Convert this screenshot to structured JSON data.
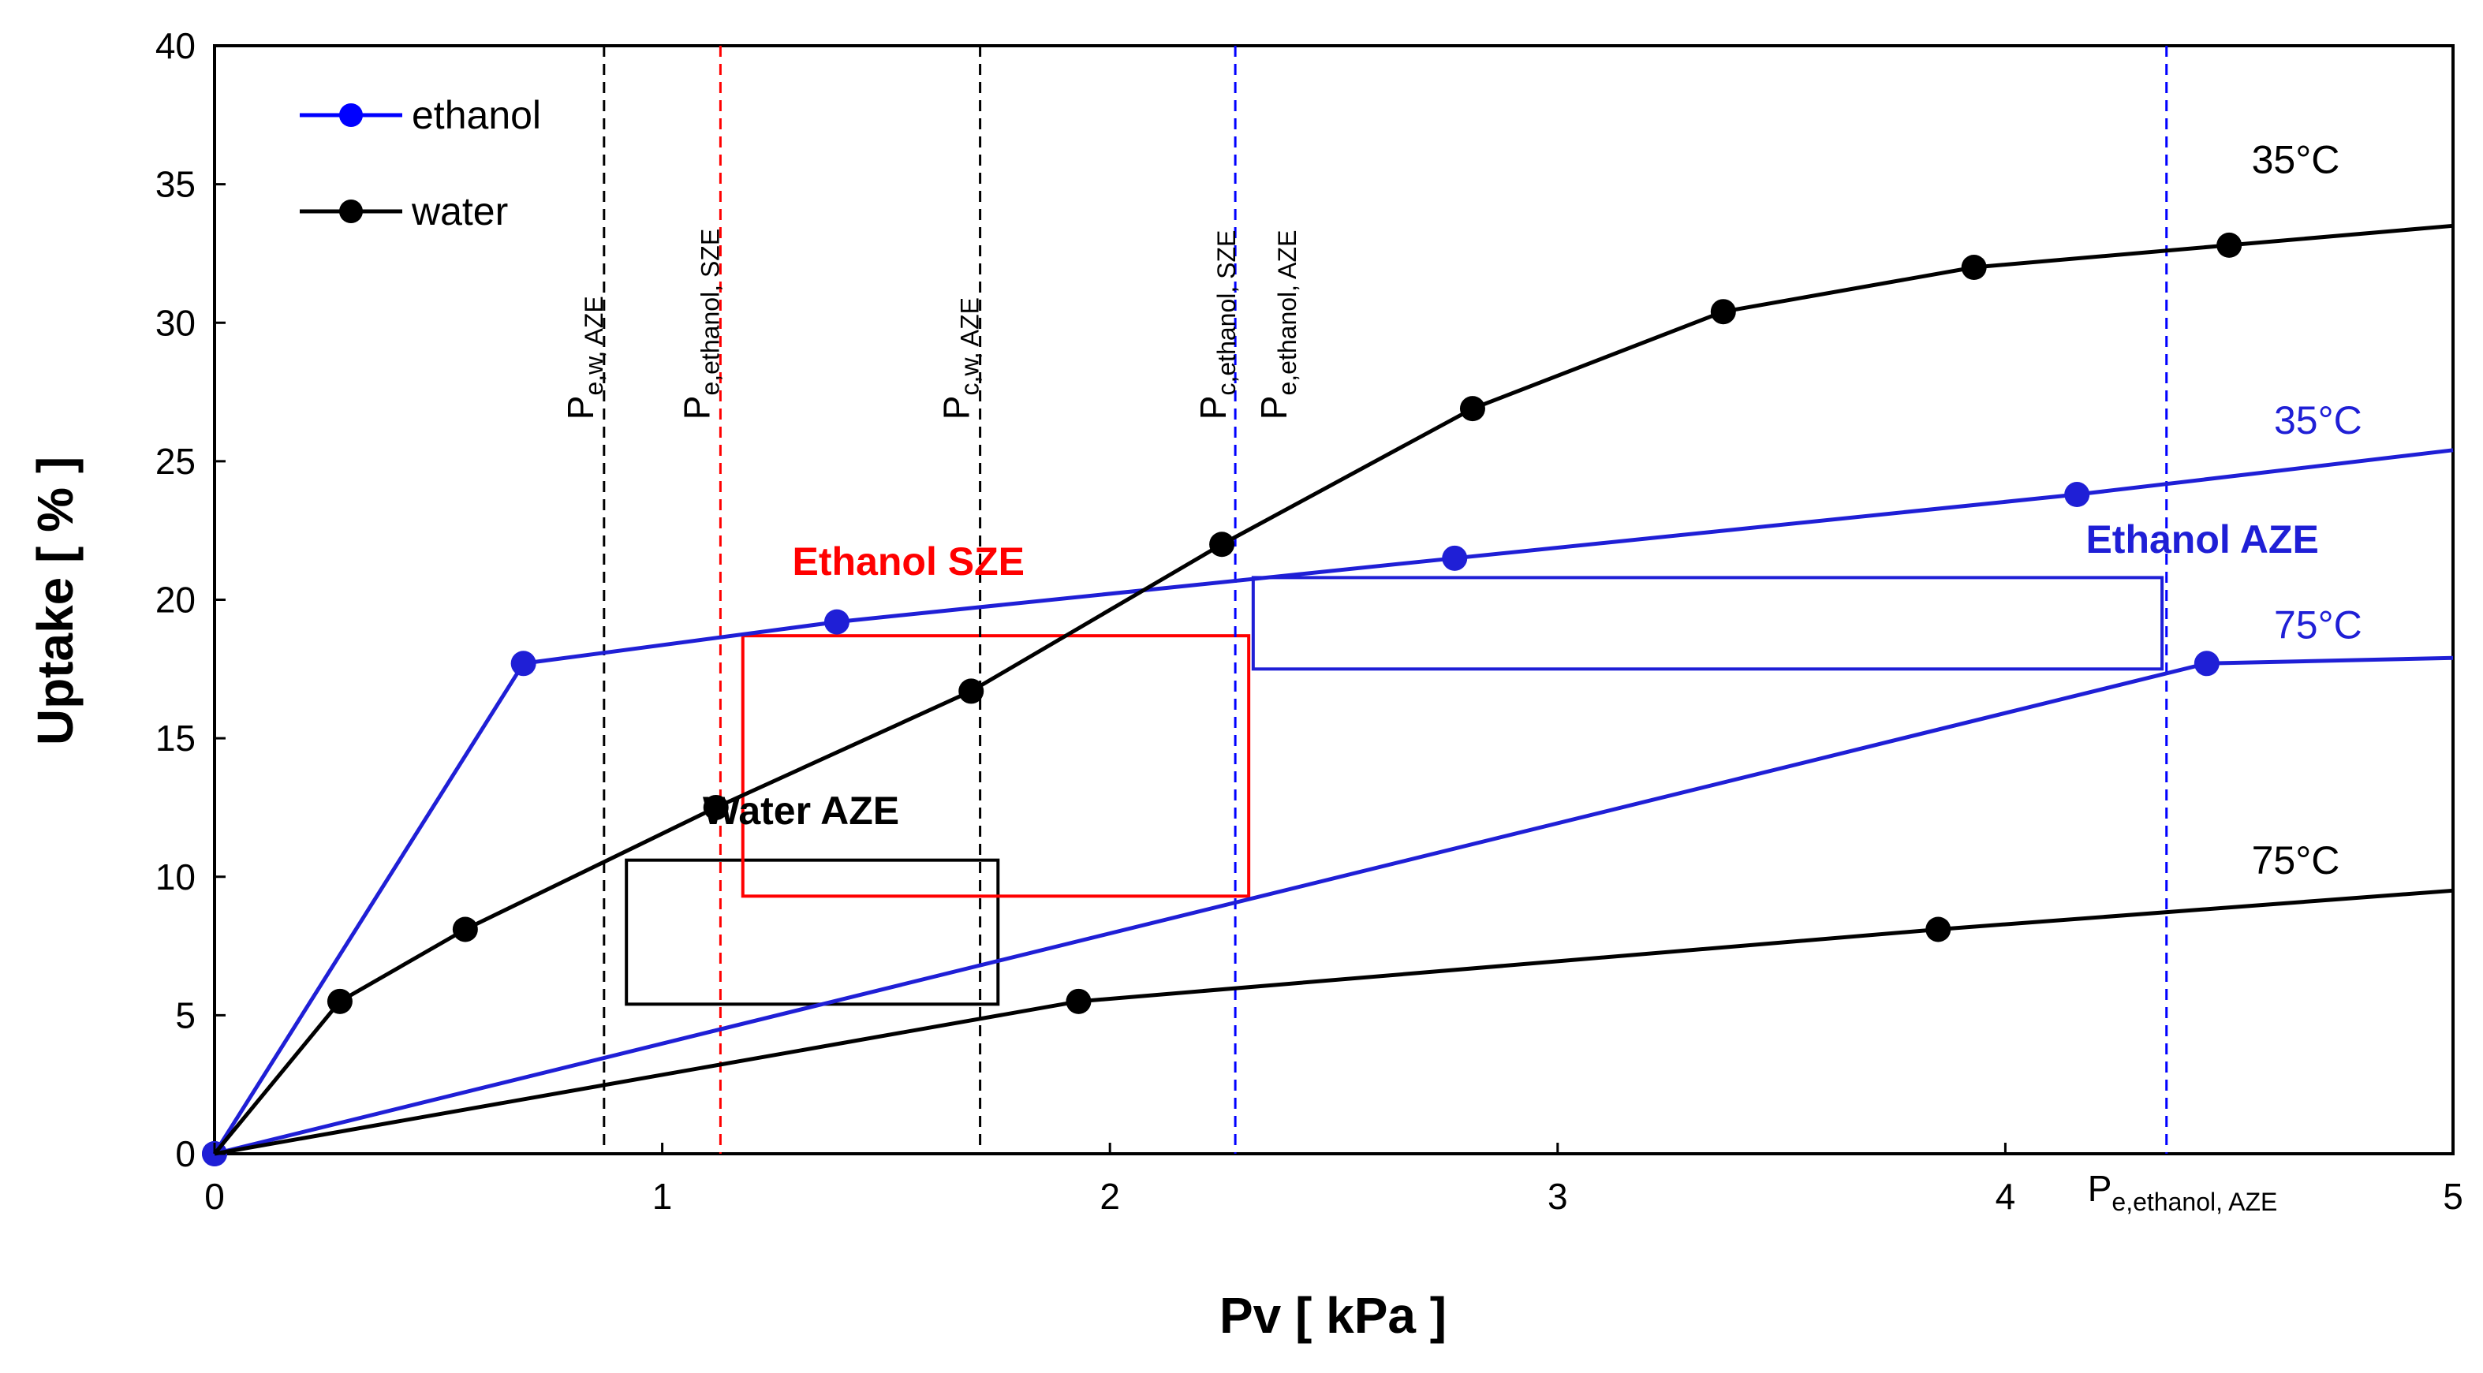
{
  "chart_data": {
    "type": "line",
    "title": "",
    "xlabel": "Pv [ kPa ]",
    "ylabel": "Uptake [ % ]",
    "xlim": [
      0,
      5
    ],
    "ylim": [
      0,
      40
    ],
    "xticks": [
      0,
      1,
      2,
      3,
      4,
      5
    ],
    "yticks": [
      0,
      5,
      10,
      15,
      20,
      25,
      30,
      35,
      40
    ],
    "xtick_labels": [
      "0",
      "1",
      "2",
      "3",
      "4",
      "5"
    ],
    "ytick_labels": [
      "0",
      "5",
      "10",
      "15",
      "20",
      "25",
      "30",
      "35",
      "40"
    ],
    "legend": {
      "position": "top-left",
      "entries": [
        {
          "label": "ethanol",
          "color": "#0000ff"
        },
        {
          "label": "water",
          "color": "#000000"
        }
      ]
    },
    "series": [
      {
        "name": "ethanol",
        "temperature": "35°C",
        "color": "#1f1fd6",
        "line_x": [
          0,
          0.69,
          1.39,
          2.77,
          4.16,
          5.0
        ],
        "line_y": [
          0,
          17.7,
          19.2,
          21.5,
          23.8,
          25.4
        ],
        "points_x": [
          0,
          0.69,
          1.39,
          2.77,
          4.16
        ],
        "points_y": [
          0,
          17.7,
          19.2,
          21.5,
          23.8
        ]
      },
      {
        "name": "ethanol",
        "temperature": "75°C",
        "color": "#1f1fd6",
        "line_x": [
          0,
          4.45,
          5.0
        ],
        "line_y": [
          0,
          17.7,
          17.9
        ],
        "points_x": [
          0,
          4.45
        ],
        "points_y": [
          0,
          17.7
        ]
      },
      {
        "name": "water",
        "temperature": "35°C",
        "color": "#000000",
        "line_x": [
          0,
          0.28,
          0.56,
          1.12,
          1.69,
          2.25,
          2.81,
          3.37,
          3.93,
          4.5,
          5.0
        ],
        "line_y": [
          0,
          5.5,
          8.1,
          12.5,
          16.7,
          22.0,
          26.9,
          30.4,
          32.0,
          32.8,
          33.5
        ],
        "points_x": [
          0.28,
          0.56,
          1.12,
          1.69,
          2.25,
          2.81,
          3.37,
          3.93,
          4.5
        ],
        "points_y": [
          5.5,
          8.1,
          12.5,
          16.7,
          22.0,
          26.9,
          30.4,
          32.0,
          32.8
        ]
      },
      {
        "name": "water",
        "temperature": "75°C",
        "color": "#000000",
        "line_x": [
          0,
          1.93,
          3.85,
          5.0
        ],
        "line_y": [
          0,
          5.5,
          8.1,
          9.5
        ],
        "points_x": [
          1.93,
          3.85
        ],
        "points_y": [
          5.5,
          8.1
        ]
      }
    ],
    "temperature_labels": [
      {
        "text": "35°C",
        "x": 4.55,
        "y": 35.4,
        "color": "#000000"
      },
      {
        "text": "35°C",
        "x": 4.6,
        "y": 26.0,
        "color": "#1f1fd6"
      },
      {
        "text": "75°C",
        "x": 4.6,
        "y": 18.6,
        "color": "#1f1fd6"
      },
      {
        "text": "75°C",
        "x": 4.55,
        "y": 10.1,
        "color": "#000000"
      }
    ],
    "vertical_lines": [
      {
        "x": 0.87,
        "color": "#000000",
        "main": "P",
        "sub": "e,w, AZE",
        "label_y": 26.5
      },
      {
        "x": 1.13,
        "color": "#ff0000",
        "main": "P",
        "sub": "e,ethanol, SZE",
        "label_y": 26.5
      },
      {
        "x": 1.71,
        "color": "#000000",
        "main": "P",
        "sub": "c,w, AZE",
        "label_y": 26.5
      },
      {
        "x": 2.28,
        "color": "#0000ff",
        "main": "P",
        "sub": "c,ethanol, SZE",
        "label_y": 26.5
      },
      {
        "x": 2.28,
        "color": "#0000ff",
        "main": "P",
        "sub": "e,ethanol, AZE",
        "label_y": 26.5
      },
      {
        "x": 4.36,
        "color": "#0000ff",
        "main": "P",
        "sub": "e,ethanol, AZE",
        "label_y": -1.6
      }
    ],
    "regions": [
      {
        "label": "Water AZE",
        "color": "#000000",
        "x0": 0.92,
        "x1": 1.75,
        "y0": 5.4,
        "y1": 10.6,
        "label_x": 1.31,
        "label_y": 11.9
      },
      {
        "label": "Ethanol SZE",
        "color": "#ff0000",
        "x0": 1.18,
        "x1": 2.31,
        "y0": 9.3,
        "y1": 18.7,
        "label_x": 1.55,
        "label_y": 20.9
      },
      {
        "label": "Ethanol AZE",
        "color": "#1f1fd6",
        "x0": 2.32,
        "x1": 4.35,
        "y0": 17.5,
        "y1": 20.8,
        "label_x": 4.44,
        "label_y": 21.7
      }
    ]
  }
}
